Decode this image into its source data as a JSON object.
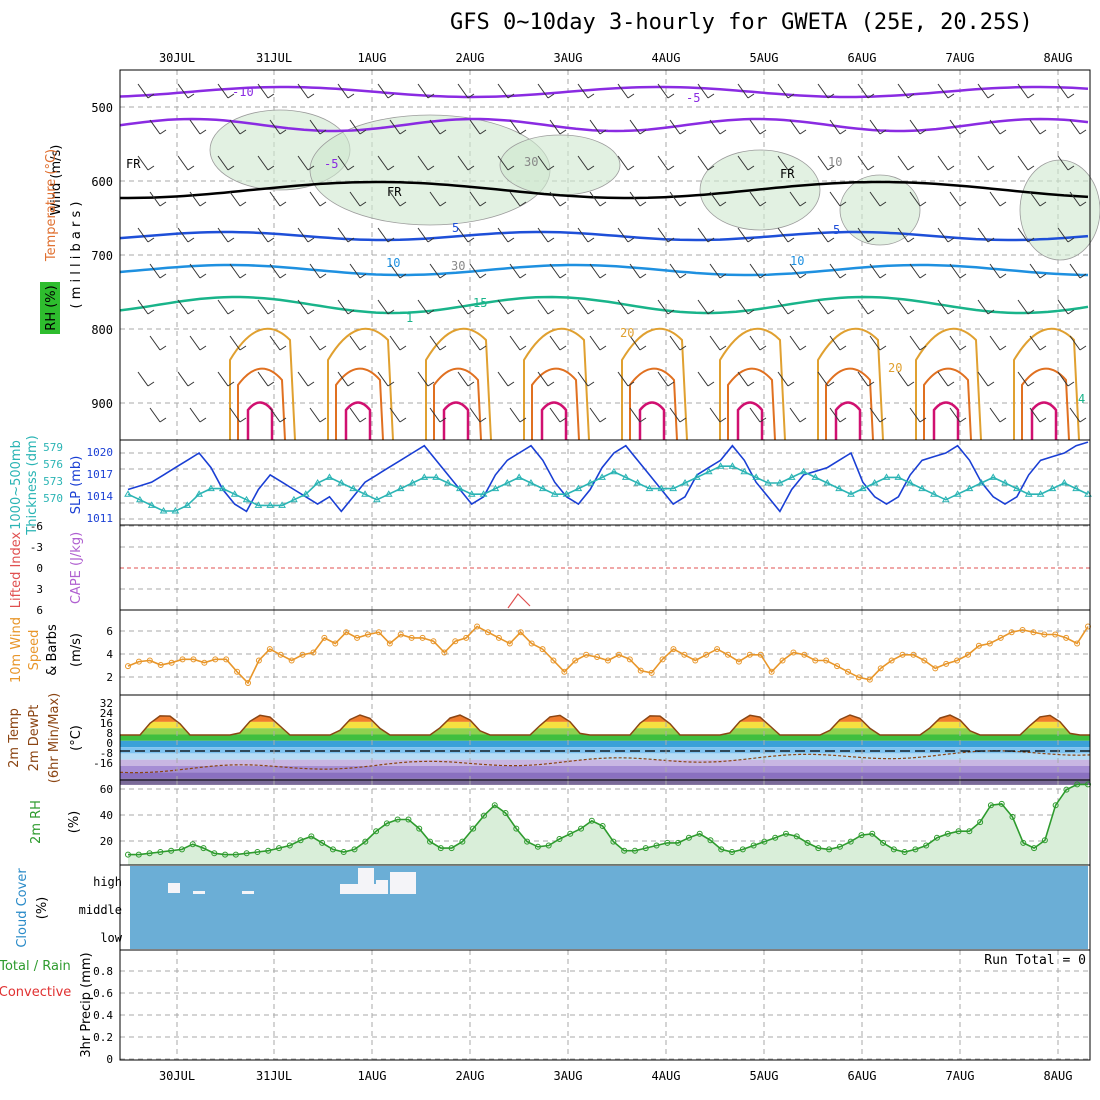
{
  "title": "GFS 0~10day 3-hourly for GWETA (25E, 20.25S)",
  "days": [
    "30JUL",
    "31JUL",
    "1AUG",
    "2AUG",
    "3AUG",
    "4AUG",
    "5AUG",
    "6AUG",
    "7AUG",
    "8AUG"
  ],
  "run_total": "Run Total = 0",
  "colors": {
    "grid": "#aaaaaa",
    "cloud": "#6baed6",
    "slp": "#1a3fd4",
    "thick": "#2ab4b4",
    "wind10": "#e8962a",
    "temp": "#8b4513",
    "rh": "#2e9b2e",
    "cape": "#e05050"
  },
  "panels": {
    "upper": {
      "label_wind": "Wind (m/s)",
      "label_temp": "Temperature (°C)",
      "label_rh": "RH (%)",
      "label_mb": "( m i l l i b a r s )",
      "levels": [
        "500",
        "600",
        "700",
        "800",
        "900"
      ],
      "contour_labels": [
        "-10",
        "-5",
        "-5",
        "FR",
        "FR",
        "FR",
        "5",
        "5",
        "10",
        "10",
        "15",
        "20",
        "20",
        "30",
        "30",
        "10",
        "4",
        "1"
      ]
    },
    "thick_slp": {
      "label_a": "1000~500mb",
      "label_b": "Thickness (dm)",
      "label_c": "SLP (mb)",
      "left_ticks": [
        "579",
        "576",
        "573",
        "570"
      ],
      "right_ticks": [
        "1020",
        "1017",
        "1014",
        "1011"
      ]
    },
    "li_cape": {
      "label_a": "Lifted Index",
      "label_b": "CAPE (J/kg)",
      "ticks": [
        "-6",
        "-3",
        "0",
        "3",
        "6"
      ]
    },
    "wind10": {
      "label_a": "10m Wind",
      "label_b": "Speed",
      "label_c": "& Barbs",
      "label_d": "(m/s)",
      "ticks": [
        "6",
        "4",
        "2"
      ]
    },
    "temp2m": {
      "label_a": "2m Temp",
      "label_b": "2m DewPt",
      "label_c": "(6hr Min/Max)",
      "label_d": "(°C)",
      "ticks": [
        "32",
        "24",
        "16",
        "8",
        "0",
        "-8",
        "-16"
      ]
    },
    "rh2m": {
      "label_a": "2m RH",
      "label_b": "(%)",
      "ticks": [
        "60",
        "40",
        "20"
      ]
    },
    "cloud": {
      "label_a": "Cloud Cover",
      "label_b": "(%)",
      "levels": [
        "high",
        "middle",
        "low"
      ]
    },
    "precip": {
      "label_a": "Total / Rain",
      "label_b": "Convective",
      "label_c": "3hr Precip (mm)",
      "ticks": [
        "0.8",
        "0.6",
        "0.4",
        "0.2",
        "0"
      ]
    }
  },
  "chart_data": [
    {
      "type": "line",
      "title": "1000~500mb Thickness (dm) / SLP (mb)",
      "x": "3-hourly 29JUL–8AUG",
      "series": [
        {
          "name": "SLP (mb)",
          "values": [
            1014,
            1014.5,
            1015,
            1016,
            1017,
            1018,
            1019,
            1017,
            1014,
            1012,
            1011,
            1014,
            1016,
            1015,
            1014,
            1013,
            1012,
            1013,
            1011,
            1013,
            1015,
            1016,
            1017,
            1018,
            1019,
            1020,
            1018,
            1016,
            1014,
            1012,
            1013,
            1016,
            1018,
            1019,
            1020,
            1018,
            1015,
            1013,
            1012,
            1014,
            1017,
            1019,
            1020,
            1018,
            1016,
            1014,
            1012,
            1013,
            1016,
            1017,
            1018,
            1020,
            1018,
            1015,
            1013,
            1011,
            1014,
            1016,
            1016.5,
            1017,
            1018,
            1019,
            1015,
            1013,
            1012,
            1013,
            1016,
            1018,
            1018.5,
            1019,
            1020,
            1018,
            1015,
            1013,
            1012,
            1013,
            1016,
            1018,
            1018.5,
            1019,
            1020,
            1020.5
          ]
        },
        {
          "name": "1000~500mb Thickness (dm)",
          "values": [
            573,
            572,
            571,
            570,
            570,
            571,
            573,
            574,
            574,
            573,
            572,
            571,
            571,
            571,
            572,
            573,
            575,
            576,
            575,
            574,
            573,
            572,
            573,
            574,
            575,
            576,
            576,
            575,
            574,
            573,
            573,
            574,
            575,
            576,
            575,
            574,
            573,
            573,
            574,
            575,
            576,
            577,
            576,
            575,
            574,
            574,
            574,
            575,
            576,
            577,
            578,
            578,
            577,
            576,
            575,
            575,
            576,
            577,
            576,
            575,
            574,
            573,
            574,
            575,
            576,
            576,
            575,
            574,
            573,
            572,
            573,
            574,
            575,
            576,
            575,
            574,
            573,
            573,
            574,
            575,
            574,
            573
          ]
        }
      ]
    },
    {
      "type": "line",
      "title": "2m RH",
      "ylabel": "(%)",
      "ylim": [
        0,
        65
      ],
      "series": [
        {
          "name": "2m RH",
          "values": [
            8,
            8,
            9,
            10,
            11,
            12,
            16,
            13,
            9,
            8,
            8,
            9,
            10,
            11,
            13,
            15,
            19,
            22,
            17,
            12,
            10,
            12,
            18,
            26,
            32,
            35,
            35,
            28,
            18,
            13,
            13,
            18,
            28,
            38,
            46,
            40,
            28,
            18,
            14,
            15,
            20,
            24,
            28,
            34,
            30,
            18,
            11,
            11,
            13,
            15,
            17,
            17,
            21,
            24,
            19,
            12,
            10,
            12,
            15,
            18,
            21,
            24,
            22,
            17,
            13,
            12,
            14,
            18,
            23,
            24,
            17,
            12,
            10,
            12,
            15,
            21,
            24,
            26,
            26,
            33,
            46,
            47,
            37,
            17,
            13,
            19,
            46,
            58,
            62,
            62
          ]
        }
      ]
    },
    {
      "type": "line",
      "title": "10m Wind Speed (m/s)",
      "ylim": [
        1,
        7.5
      ],
      "series": [
        {
          "name": "10m Wind Speed",
          "values": [
            3,
            3.4,
            3.5,
            3.1,
            3.3,
            3.6,
            3.6,
            3.3,
            3.6,
            3.6,
            2.5,
            1.5,
            3.5,
            4.5,
            4.0,
            3.5,
            4.0,
            4.2,
            5.5,
            5.0,
            6.0,
            5.5,
            5.8,
            6.0,
            5.0,
            5.8,
            5.5,
            5.5,
            5.2,
            4.2,
            5.2,
            5.5,
            6.5,
            6.0,
            5.5,
            5.0,
            6.0,
            5.0,
            4.5,
            3.5,
            2.5,
            3.5,
            4.0,
            3.8,
            3.5,
            4.0,
            3.6,
            2.6,
            2.4,
            3.6,
            4.5,
            4.0,
            3.5,
            4.0,
            4.5,
            4.0,
            3.4,
            4.0,
            4.0,
            2.5,
            3.5,
            4.2,
            4.0,
            3.5,
            3.5,
            3.0,
            2.5,
            2.0,
            1.8,
            2.8,
            3.5,
            4.0,
            4.0,
            3.5,
            2.8,
            3.2,
            3.5,
            4.0,
            4.8,
            5.0,
            5.5,
            6.0,
            6.2,
            6.0,
            5.8,
            5.8,
            5.5,
            5.0,
            6.5
          ]
        }
      ]
    }
  ]
}
